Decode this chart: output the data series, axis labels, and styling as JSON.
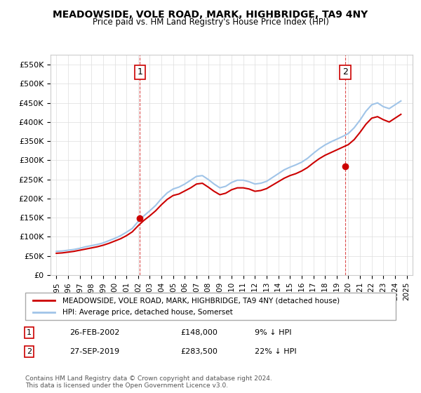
{
  "title": "MEADOWSIDE, VOLE ROAD, MARK, HIGHBRIDGE, TA9 4NY",
  "subtitle": "Price paid vs. HM Land Registry's House Price Index (HPI)",
  "ylabel_ticks": [
    "£0",
    "£50K",
    "£100K",
    "£150K",
    "£200K",
    "£250K",
    "£300K",
    "£350K",
    "£400K",
    "£450K",
    "£500K",
    "£550K"
  ],
  "ytick_values": [
    0,
    50000,
    100000,
    150000,
    200000,
    250000,
    300000,
    350000,
    400000,
    450000,
    500000,
    550000
  ],
  "ylim": [
    0,
    575000
  ],
  "hpi_color": "#a0c4e8",
  "price_color": "#cc0000",
  "transaction_color": "#cc0000",
  "dashed_color": "#cc0000",
  "legend_label_price": "MEADOWSIDE, VOLE ROAD, MARK, HIGHBRIDGE, TA9 4NY (detached house)",
  "legend_label_hpi": "HPI: Average price, detached house, Somerset",
  "transaction1_label": "1",
  "transaction1_date": "26-FEB-2002",
  "transaction1_price": "£148,000",
  "transaction1_hpi": "9% ↓ HPI",
  "transaction2_label": "2",
  "transaction2_date": "27-SEP-2019",
  "transaction2_price": "£283,500",
  "transaction2_hpi": "22% ↓ HPI",
  "footer": "Contains HM Land Registry data © Crown copyright and database right 2024.\nThis data is licensed under the Open Government Licence v3.0.",
  "hpi_years": [
    1995,
    1995.5,
    1996,
    1996.5,
    1997,
    1997.5,
    1998,
    1998.5,
    1999,
    1999.5,
    2000,
    2000.5,
    2001,
    2001.5,
    2002,
    2002.5,
    2003,
    2003.5,
    2004,
    2004.5,
    2005,
    2005.5,
    2006,
    2006.5,
    2007,
    2007.5,
    2008,
    2008.5,
    2009,
    2009.5,
    2010,
    2010.5,
    2011,
    2011.5,
    2012,
    2012.5,
    2013,
    2013.5,
    2014,
    2014.5,
    2015,
    2015.5,
    2016,
    2016.5,
    2017,
    2017.5,
    2018,
    2018.5,
    2019,
    2019.5,
    2020,
    2020.5,
    2021,
    2021.5,
    2022,
    2022.5,
    2023,
    2023.5,
    2024,
    2024.5
  ],
  "hpi_values": [
    62000,
    63000,
    65000,
    67000,
    70000,
    74000,
    77000,
    80000,
    84000,
    90000,
    96000,
    103000,
    112000,
    122000,
    140000,
    155000,
    168000,
    182000,
    200000,
    215000,
    225000,
    230000,
    238000,
    248000,
    258000,
    260000,
    250000,
    238000,
    228000,
    232000,
    242000,
    248000,
    248000,
    244000,
    238000,
    240000,
    245000,
    255000,
    265000,
    275000,
    282000,
    288000,
    295000,
    305000,
    318000,
    330000,
    340000,
    348000,
    355000,
    362000,
    370000,
    385000,
    405000,
    428000,
    445000,
    450000,
    440000,
    435000,
    445000,
    455000
  ],
  "price_years": [
    1995,
    1995.5,
    1996,
    1996.5,
    1997,
    1997.5,
    1998,
    1998.5,
    1999,
    1999.5,
    2000,
    2000.5,
    2001,
    2001.5,
    2002,
    2002.5,
    2003,
    2003.5,
    2004,
    2004.5,
    2005,
    2005.5,
    2006,
    2006.5,
    2007,
    2007.5,
    2008,
    2008.5,
    2009,
    2009.5,
    2010,
    2010.5,
    2011,
    2011.5,
    2012,
    2012.5,
    2013,
    2013.5,
    2014,
    2014.5,
    2015,
    2015.5,
    2016,
    2016.5,
    2017,
    2017.5,
    2018,
    2018.5,
    2019,
    2019.5,
    2020,
    2020.5,
    2021,
    2021.5,
    2022,
    2022.5,
    2023,
    2023.5,
    2024,
    2024.5
  ],
  "price_values": [
    57000,
    58000,
    60000,
    62000,
    65000,
    68000,
    71000,
    74000,
    78000,
    83000,
    89000,
    95000,
    103000,
    113000,
    129000,
    143000,
    155000,
    168000,
    184000,
    198000,
    208000,
    212000,
    220000,
    228000,
    238000,
    240000,
    230000,
    219000,
    210000,
    214000,
    223000,
    228000,
    228000,
    225000,
    219000,
    221000,
    226000,
    235000,
    244000,
    253000,
    260000,
    265000,
    272000,
    281000,
    293000,
    304000,
    313000,
    320000,
    327000,
    334000,
    341000,
    354000,
    373000,
    394000,
    410000,
    414000,
    406000,
    400000,
    410000,
    420000
  ],
  "transaction1_year": 2002.15,
  "transaction1_value": 148000,
  "transaction2_year": 2019.73,
  "transaction2_value": 283500,
  "xlim_min": 1994.5,
  "xlim_max": 2025.5,
  "xtick_years": [
    1995,
    1996,
    1997,
    1998,
    1999,
    2000,
    2001,
    2002,
    2003,
    2004,
    2005,
    2006,
    2007,
    2008,
    2009,
    2010,
    2011,
    2012,
    2013,
    2014,
    2015,
    2016,
    2017,
    2018,
    2019,
    2020,
    2021,
    2022,
    2023,
    2024,
    2025
  ]
}
